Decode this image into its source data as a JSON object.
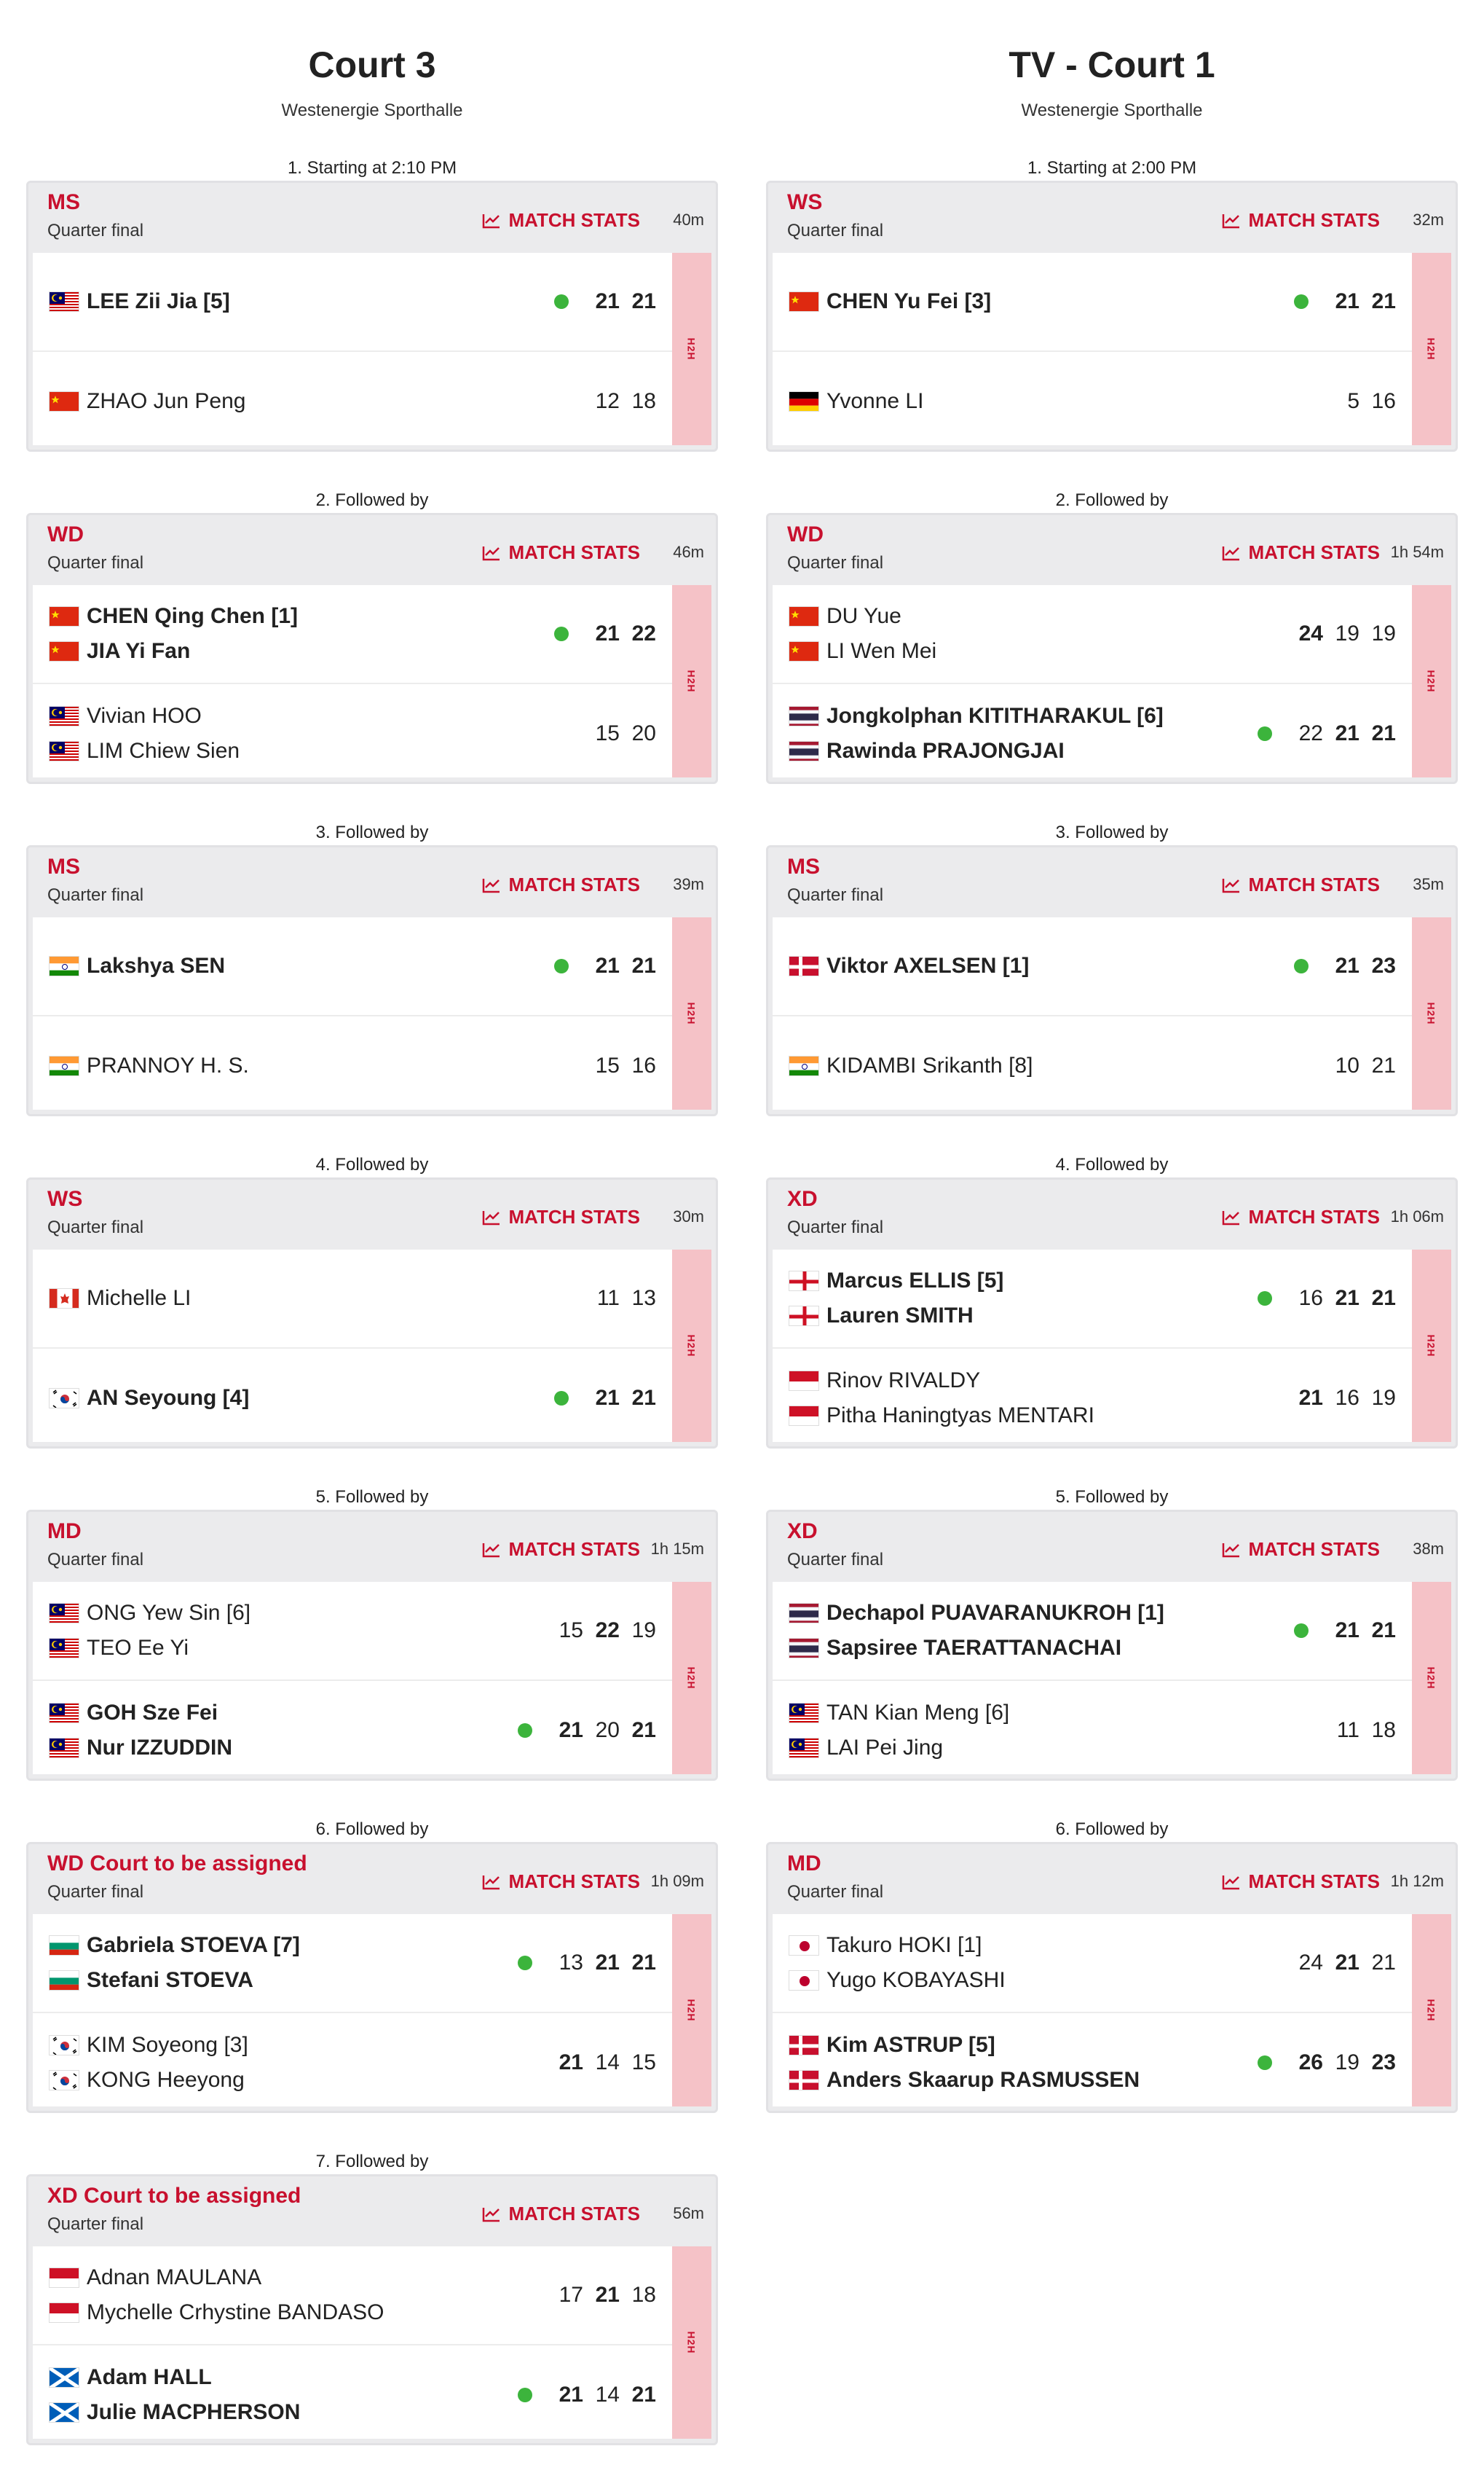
{
  "columns": [
    {
      "court": "Court 3",
      "venue": "Westenergie Sporthalle",
      "matches": [
        {
          "order": "1. Starting at 2:10 PM",
          "event": "MS",
          "round": "Quarter final",
          "stats_label": "MATCH STATS",
          "duration": "40m",
          "h2h": "H2H",
          "teams": [
            {
              "winner": true,
              "players": [
                {
                  "name": "LEE Zii Jia [5]",
                  "flag": "MY"
                }
              ],
              "scores": [
                "21",
                "21"
              ],
              "won_games": [
                true,
                true
              ]
            },
            {
              "winner": false,
              "players": [
                {
                  "name": "ZHAO Jun Peng",
                  "flag": "CN"
                }
              ],
              "scores": [
                "12",
                "18"
              ],
              "won_games": [
                false,
                false
              ]
            }
          ]
        },
        {
          "order": "2. Followed by",
          "event": "WD",
          "round": "Quarter final",
          "stats_label": "MATCH STATS",
          "duration": "46m",
          "h2h": "H2H",
          "teams": [
            {
              "winner": true,
              "players": [
                {
                  "name": "CHEN Qing Chen [1]",
                  "flag": "CN"
                },
                {
                  "name": "JIA Yi Fan",
                  "flag": "CN"
                }
              ],
              "scores": [
                "21",
                "22"
              ],
              "won_games": [
                true,
                true
              ]
            },
            {
              "winner": false,
              "players": [
                {
                  "name": "Vivian HOO",
                  "flag": "MY"
                },
                {
                  "name": "LIM Chiew Sien",
                  "flag": "MY"
                }
              ],
              "scores": [
                "15",
                "20"
              ],
              "won_games": [
                false,
                false
              ]
            }
          ]
        },
        {
          "order": "3. Followed by",
          "event": "MS",
          "round": "Quarter final",
          "stats_label": "MATCH STATS",
          "duration": "39m",
          "h2h": "H2H",
          "teams": [
            {
              "winner": true,
              "players": [
                {
                  "name": "Lakshya SEN",
                  "flag": "IN"
                }
              ],
              "scores": [
                "21",
                "21"
              ],
              "won_games": [
                true,
                true
              ]
            },
            {
              "winner": false,
              "players": [
                {
                  "name": "PRANNOY H. S.",
                  "flag": "IN"
                }
              ],
              "scores": [
                "15",
                "16"
              ],
              "won_games": [
                false,
                false
              ]
            }
          ]
        },
        {
          "order": "4. Followed by",
          "event": "WS",
          "round": "Quarter final",
          "stats_label": "MATCH STATS",
          "duration": "30m",
          "h2h": "H2H",
          "teams": [
            {
              "winner": false,
              "players": [
                {
                  "name": "Michelle LI",
                  "flag": "CA"
                }
              ],
              "scores": [
                "11",
                "13"
              ],
              "won_games": [
                false,
                false
              ]
            },
            {
              "winner": true,
              "players": [
                {
                  "name": "AN Seyoung [4]",
                  "flag": "KR"
                }
              ],
              "scores": [
                "21",
                "21"
              ],
              "won_games": [
                true,
                true
              ]
            }
          ]
        },
        {
          "order": "5. Followed by",
          "event": "MD",
          "round": "Quarter final",
          "stats_label": "MATCH STATS",
          "duration": "1h 15m",
          "h2h": "H2H",
          "teams": [
            {
              "winner": false,
              "players": [
                {
                  "name": "ONG Yew Sin [6]",
                  "flag": "MY"
                },
                {
                  "name": "TEO Ee Yi",
                  "flag": "MY"
                }
              ],
              "scores": [
                "15",
                "22",
                "19"
              ],
              "won_games": [
                false,
                true,
                false
              ]
            },
            {
              "winner": true,
              "players": [
                {
                  "name": "GOH Sze Fei",
                  "flag": "MY"
                },
                {
                  "name": "Nur IZZUDDIN",
                  "flag": "MY"
                }
              ],
              "scores": [
                "21",
                "20",
                "21"
              ],
              "won_games": [
                true,
                false,
                true
              ]
            }
          ]
        },
        {
          "order": "6. Followed by",
          "event": "WD Court to be assigned",
          "round": "Quarter final",
          "stats_label": "MATCH STATS",
          "duration": "1h 09m",
          "h2h": "H2H",
          "teams": [
            {
              "winner": true,
              "players": [
                {
                  "name": "Gabriela STOEVA [7]",
                  "flag": "BG"
                },
                {
                  "name": "Stefani STOEVA",
                  "flag": "BG"
                }
              ],
              "scores": [
                "13",
                "21",
                "21"
              ],
              "won_games": [
                false,
                true,
                true
              ]
            },
            {
              "winner": false,
              "players": [
                {
                  "name": "KIM Soyeong [3]",
                  "flag": "KR"
                },
                {
                  "name": "KONG Heeyong",
                  "flag": "KR"
                }
              ],
              "scores": [
                "21",
                "14",
                "15"
              ],
              "won_games": [
                true,
                false,
                false
              ]
            }
          ]
        },
        {
          "order": "7. Followed by",
          "event": "XD Court to be assigned",
          "round": "Quarter final",
          "stats_label": "MATCH STATS",
          "duration": "56m",
          "h2h": "H2H",
          "teams": [
            {
              "winner": false,
              "players": [
                {
                  "name": "Adnan MAULANA",
                  "flag": "ID"
                },
                {
                  "name": "Mychelle Crhystine BANDASO",
                  "flag": "ID"
                }
              ],
              "scores": [
                "17",
                "21",
                "18"
              ],
              "won_games": [
                false,
                true,
                false
              ]
            },
            {
              "winner": true,
              "players": [
                {
                  "name": "Adam HALL",
                  "flag": "SCO"
                },
                {
                  "name": "Julie MACPHERSON",
                  "flag": "SCO"
                }
              ],
              "scores": [
                "21",
                "14",
                "21"
              ],
              "won_games": [
                true,
                false,
                true
              ]
            }
          ]
        }
      ]
    },
    {
      "court": "TV - Court 1",
      "venue": "Westenergie Sporthalle",
      "matches": [
        {
          "order": "1. Starting at 2:00 PM",
          "event": "WS",
          "round": "Quarter final",
          "stats_label": "MATCH STATS",
          "duration": "32m",
          "h2h": "H2H",
          "teams": [
            {
              "winner": true,
              "players": [
                {
                  "name": "CHEN Yu Fei [3]",
                  "flag": "CN"
                }
              ],
              "scores": [
                "21",
                "21"
              ],
              "won_games": [
                true,
                true
              ]
            },
            {
              "winner": false,
              "players": [
                {
                  "name": "Yvonne LI",
                  "flag": "DE"
                }
              ],
              "scores": [
                "5",
                "16"
              ],
              "won_games": [
                false,
                false
              ]
            }
          ]
        },
        {
          "order": "2. Followed by",
          "event": "WD",
          "round": "Quarter final",
          "stats_label": "MATCH STATS",
          "duration": "1h 54m",
          "h2h": "H2H",
          "teams": [
            {
              "winner": false,
              "players": [
                {
                  "name": "DU Yue",
                  "flag": "CN"
                },
                {
                  "name": "LI Wen Mei",
                  "flag": "CN"
                }
              ],
              "scores": [
                "24",
                "19",
                "19"
              ],
              "won_games": [
                true,
                false,
                false
              ]
            },
            {
              "winner": true,
              "players": [
                {
                  "name": "Jongkolphan KITITHARAKUL [6]",
                  "flag": "TH"
                },
                {
                  "name": "Rawinda PRAJONGJAI",
                  "flag": "TH"
                }
              ],
              "scores": [
                "22",
                "21",
                "21"
              ],
              "won_games": [
                false,
                true,
                true
              ]
            }
          ]
        },
        {
          "order": "3. Followed by",
          "event": "MS",
          "round": "Quarter final",
          "stats_label": "MATCH STATS",
          "duration": "35m",
          "h2h": "H2H",
          "teams": [
            {
              "winner": true,
              "players": [
                {
                  "name": "Viktor AXELSEN [1]",
                  "flag": "DK"
                }
              ],
              "scores": [
                "21",
                "23"
              ],
              "won_games": [
                true,
                true
              ]
            },
            {
              "winner": false,
              "players": [
                {
                  "name": "KIDAMBI Srikanth [8]",
                  "flag": "IN"
                }
              ],
              "scores": [
                "10",
                "21"
              ],
              "won_games": [
                false,
                false
              ]
            }
          ]
        },
        {
          "order": "4. Followed by",
          "event": "XD",
          "round": "Quarter final",
          "stats_label": "MATCH STATS",
          "duration": "1h 06m",
          "h2h": "H2H",
          "teams": [
            {
              "winner": true,
              "players": [
                {
                  "name": "Marcus ELLIS [5]",
                  "flag": "ENG"
                },
                {
                  "name": "Lauren SMITH",
                  "flag": "ENG"
                }
              ],
              "scores": [
                "16",
                "21",
                "21"
              ],
              "won_games": [
                false,
                true,
                true
              ]
            },
            {
              "winner": false,
              "players": [
                {
                  "name": "Rinov RIVALDY",
                  "flag": "ID"
                },
                {
                  "name": "Pitha Haningtyas MENTARI",
                  "flag": "ID"
                }
              ],
              "scores": [
                "21",
                "16",
                "19"
              ],
              "won_games": [
                true,
                false,
                false
              ]
            }
          ]
        },
        {
          "order": "5. Followed by",
          "event": "XD",
          "round": "Quarter final",
          "stats_label": "MATCH STATS",
          "duration": "38m",
          "h2h": "H2H",
          "teams": [
            {
              "winner": true,
              "players": [
                {
                  "name": "Dechapol PUAVARANUKROH [1]",
                  "flag": "TH"
                },
                {
                  "name": "Sapsiree TAERATTANACHAI",
                  "flag": "TH"
                }
              ],
              "scores": [
                "21",
                "21"
              ],
              "won_games": [
                true,
                true
              ]
            },
            {
              "winner": false,
              "players": [
                {
                  "name": "TAN Kian Meng [6]",
                  "flag": "MY"
                },
                {
                  "name": "LAI Pei Jing",
                  "flag": "MY"
                }
              ],
              "scores": [
                "11",
                "18"
              ],
              "won_games": [
                false,
                false
              ]
            }
          ]
        },
        {
          "order": "6. Followed by",
          "event": "MD",
          "round": "Quarter final",
          "stats_label": "MATCH STATS",
          "duration": "1h 12m",
          "h2h": "H2H",
          "teams": [
            {
              "winner": false,
              "players": [
                {
                  "name": "Takuro HOKI [1]",
                  "flag": "JP"
                },
                {
                  "name": "Yugo KOBAYASHI",
                  "flag": "JP"
                }
              ],
              "scores": [
                "24",
                "21",
                "21"
              ],
              "won_games": [
                false,
                true,
                false
              ]
            },
            {
              "winner": true,
              "players": [
                {
                  "name": "Kim ASTRUP [5]",
                  "flag": "DK"
                },
                {
                  "name": "Anders Skaarup RASMUSSEN",
                  "flag": "DK"
                }
              ],
              "scores": [
                "26",
                "19",
                "23"
              ],
              "won_games": [
                true,
                false,
                true
              ]
            }
          ]
        }
      ]
    }
  ],
  "colors": {
    "accent": "#c8102e",
    "card_bg": "#ebebed",
    "h2h_bg": "#f5c2c7",
    "winner_dot": "#3cb43c"
  },
  "icons": {
    "stats": "chart-line-icon"
  }
}
